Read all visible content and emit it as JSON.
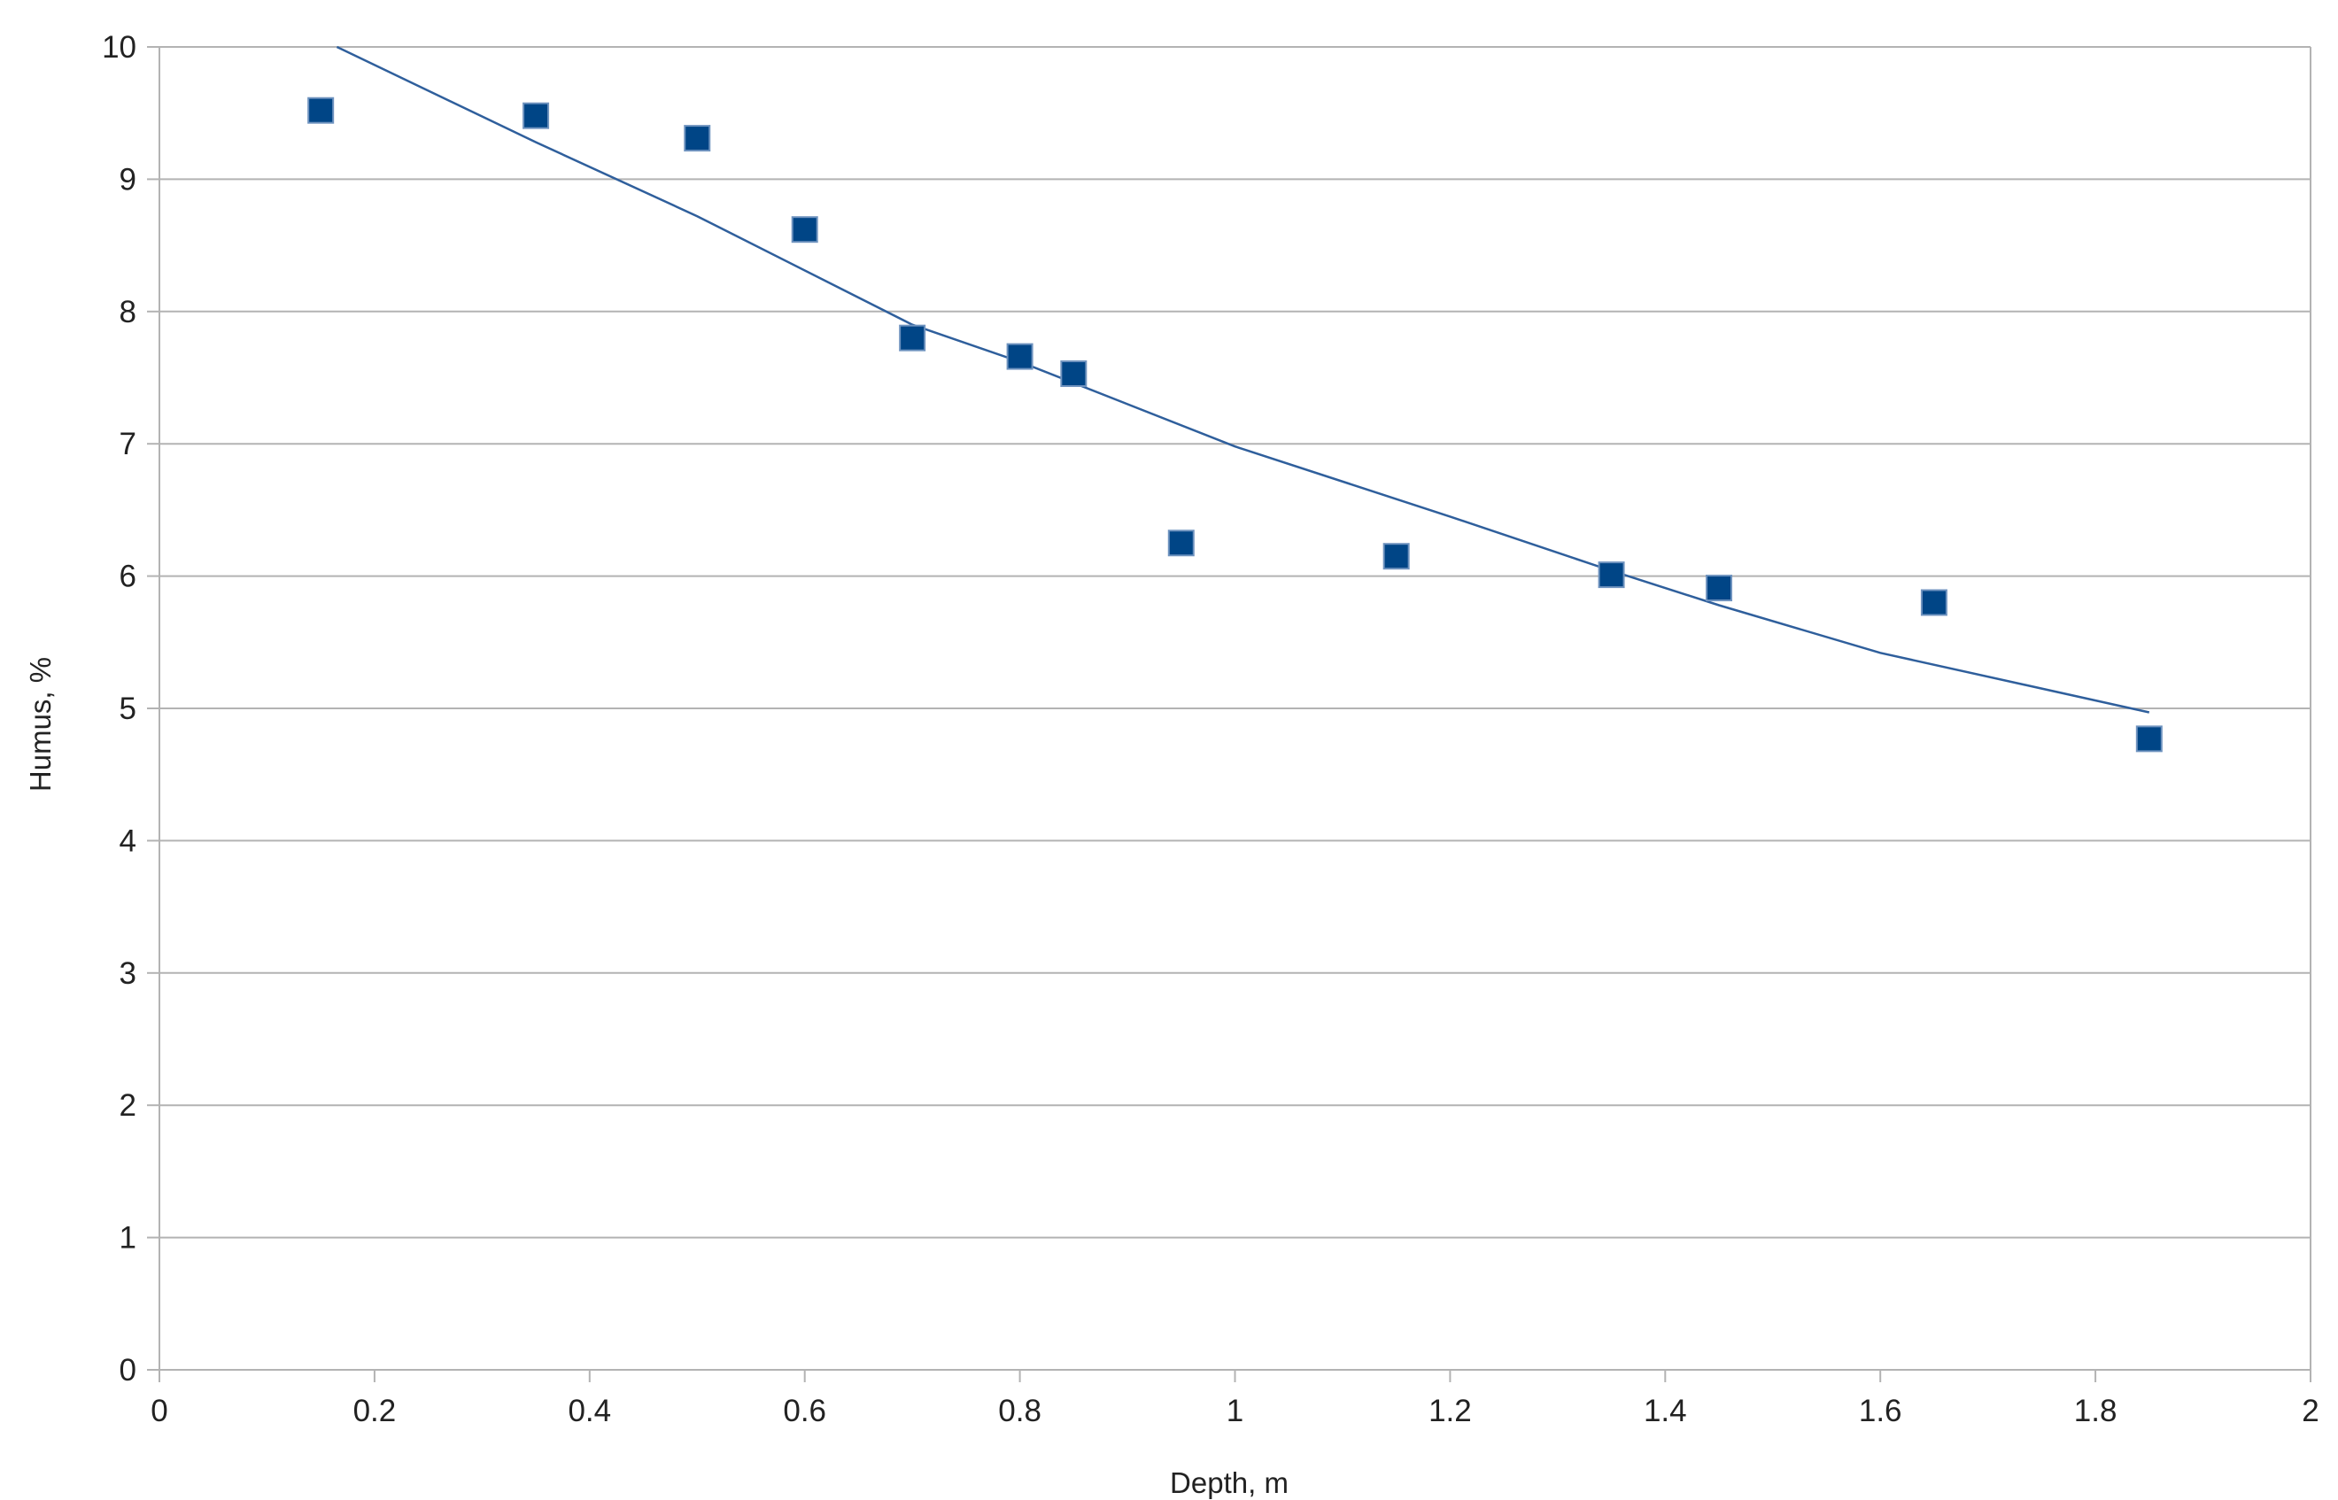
{
  "chart_data": {
    "type": "scatter",
    "title": "",
    "xlabel": "Depth, m",
    "ylabel": "Humus, %",
    "xlim": [
      0,
      2
    ],
    "ylim": [
      0,
      10
    ],
    "x_ticks": [
      "0",
      "0.2",
      "0.4",
      "0.6",
      "0.8",
      "1",
      "1.2",
      "1.4",
      "1.6",
      "1.8",
      "2"
    ],
    "y_ticks": [
      "0",
      "1",
      "2",
      "3",
      "4",
      "5",
      "6",
      "7",
      "8",
      "9",
      "10"
    ],
    "grid": "horizontal",
    "legend": "none",
    "series": [
      {
        "x": [
          0.15,
          0.35,
          0.5,
          0.6,
          0.7,
          0.8,
          0.85,
          0.95,
          1.15,
          1.35,
          1.45,
          1.65,
          1.85
        ],
        "y": [
          9.52,
          9.48,
          9.31,
          8.62,
          7.8,
          7.66,
          7.53,
          6.25,
          6.15,
          6.01,
          5.91,
          5.8,
          4.77
        ],
        "color": "#004586"
      }
    ],
    "trendline": {
      "x_range": [
        0.165,
        1.85
      ],
      "points": [
        [
          0.165,
          10.0
        ],
        [
          0.35,
          9.28
        ],
        [
          0.5,
          8.72
        ],
        [
          0.7,
          7.9
        ],
        [
          0.8,
          7.62
        ],
        [
          1.0,
          6.98
        ],
        [
          1.2,
          6.45
        ],
        [
          1.35,
          6.04
        ],
        [
          1.45,
          5.78
        ],
        [
          1.6,
          5.42
        ],
        [
          1.85,
          4.97
        ]
      ],
      "color": "#2f5f9c"
    }
  }
}
